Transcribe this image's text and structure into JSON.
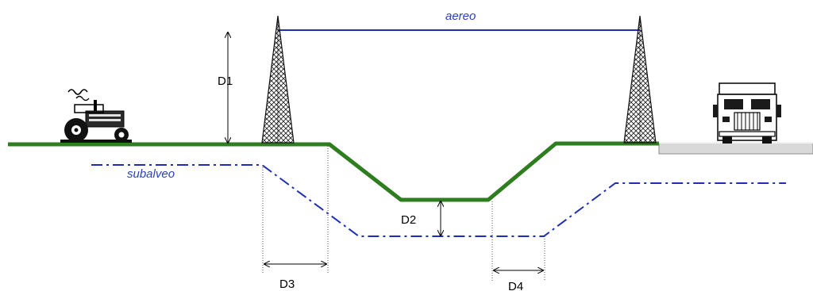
{
  "labels": {
    "aerial": "aereo",
    "underground": "subalveo",
    "d1": "D1",
    "d2": "D2",
    "d3": "D3",
    "d4": "D4"
  },
  "colors": {
    "ground": "#2e7d1e",
    "crossing_line": "#1f2fb5",
    "road": "#d9d9d9"
  },
  "icons": [
    "tractor-icon",
    "truck-icon",
    "lattice-tower-icon"
  ]
}
